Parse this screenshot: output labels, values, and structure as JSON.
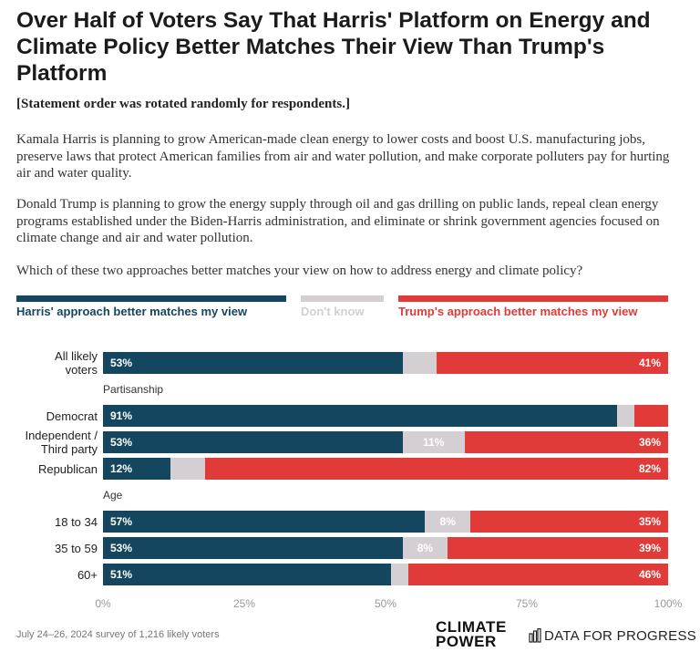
{
  "chart_data": {
    "type": "stacked-bar-horizontal",
    "title": "Over Half of Voters Say That Harris' Platform on Energy and Climate Policy Better Matches Their View Than Trump's Platform",
    "subtitle": "[Statement order was rotated randomly for respondents.]",
    "descriptions": [
      "Kamala Harris is planning to grow American-made clean energy to lower costs and boost U.S. manufacturing jobs, preserve laws that protect American families from air and water pollution, and make corporate polluters pay for hurting air and water quality.",
      "Donald Trump is planning to grow the energy supply through oil and gas drilling on public lands, repeal clean energy programs established under the Biden-Harris administration, and eliminate or shrink government agencies focused on climate change and air and water pollution.",
      "Which of these two approaches better matches your view on how to address energy and climate policy?"
    ],
    "categories": [
      "All likely\nvoters",
      "Partisanship",
      "Democrat",
      "Independent /\nThird party",
      "Republican",
      "Age",
      "18 to 34",
      "35 to 59",
      "60+"
    ],
    "series": [
      {
        "name": "Harris' approach better matches my view",
        "color": "#14475f",
        "values": [
          53,
          null,
          91,
          53,
          12,
          null,
          57,
          53,
          51
        ],
        "value_labels": [
          "53%",
          null,
          "91%",
          "53%",
          "12%",
          null,
          "57%",
          "53%",
          "51%"
        ]
      },
      {
        "name": "Don't know",
        "color": "#d3cfd2",
        "values": [
          6,
          null,
          3,
          11,
          6,
          null,
          8,
          8,
          3
        ],
        "value_labels": [
          null,
          null,
          null,
          "11%",
          null,
          null,
          "8%",
          "8%",
          null
        ]
      },
      {
        "name": "Trump's approach better matches my view",
        "color": "#e03b38",
        "values": [
          41,
          null,
          6,
          36,
          82,
          null,
          35,
          39,
          46
        ],
        "value_labels": [
          "41%",
          null,
          null,
          "36%",
          "82%",
          null,
          "35%",
          "39%",
          "46%"
        ]
      }
    ],
    "xlim": [
      0,
      100
    ],
    "xticks": [
      {
        "value": 0,
        "label": "0%"
      },
      {
        "value": 25,
        "label": "25%"
      },
      {
        "value": 50,
        "label": "50%"
      },
      {
        "value": 75,
        "label": "75%"
      },
      {
        "value": 100,
        "label": "100%"
      }
    ],
    "source": "July 24–26, 2024 survey of 1,216 likely voters",
    "logos": [
      "CLIMATE\nPOWER",
      "DATA FOR PROGRESS"
    ]
  }
}
